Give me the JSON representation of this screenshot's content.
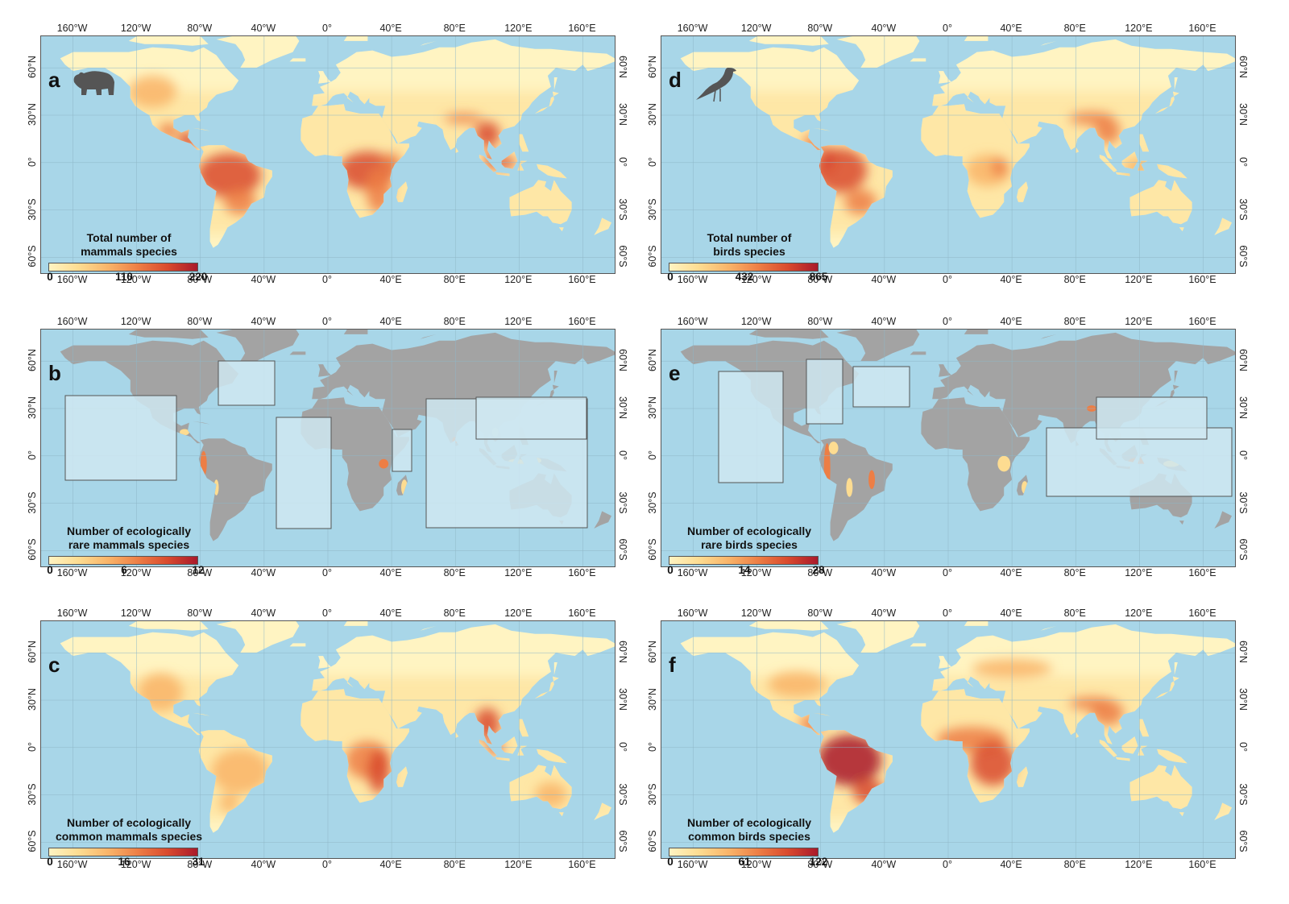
{
  "axes": {
    "lon_ticks": [
      "160°W",
      "120°W",
      "80°W",
      "40°W",
      "0°",
      "40°E",
      "80°E",
      "120°E",
      "160°E"
    ],
    "lat_ticks": [
      "60°N",
      "30°N",
      "0°",
      "30°S",
      "60°S"
    ]
  },
  "colors": {
    "ocean": "#a8d6e8",
    "land_gray": "#a3a3a3",
    "ramp": [
      "#fff4c2",
      "#fddc91",
      "#f9b469",
      "#ed7e45",
      "#d94a2e",
      "#a9192b"
    ]
  },
  "panels": [
    {
      "letter": "a",
      "title_line1": "Total number of",
      "title_line2": "mammals species",
      "legend": [
        "0",
        "110",
        "220"
      ],
      "mode": "heat",
      "icon": "bear-icon",
      "hot": "mammal"
    },
    {
      "letter": "b",
      "title_line1": "Number of ecologically",
      "title_line2": "rare mammals species",
      "legend": [
        "0",
        "6",
        "12"
      ],
      "mode": "gray",
      "icon": "",
      "hot": "rare-mammal"
    },
    {
      "letter": "c",
      "title_line1": "Number of ecologically",
      "title_line2": "common mammals species",
      "legend": [
        "0",
        "16",
        "31"
      ],
      "mode": "heat",
      "icon": "",
      "hot": "common-mammal"
    },
    {
      "letter": "d",
      "title_line1": "Total number of",
      "title_line2": "birds species",
      "legend": [
        "0",
        "432",
        "865"
      ],
      "mode": "heat",
      "icon": "bird-icon",
      "hot": "bird"
    },
    {
      "letter": "e",
      "title_line1": "Number of ecologically",
      "title_line2": "rare birds species",
      "legend": [
        "0",
        "14",
        "28"
      ],
      "mode": "gray",
      "icon": "",
      "hot": "rare-bird"
    },
    {
      "letter": "f",
      "title_line1": "Number of ecologically",
      "title_line2": "common birds species",
      "legend": [
        "0",
        "61",
        "122"
      ],
      "mode": "heat",
      "icon": "",
      "hot": "common-bird"
    }
  ]
}
